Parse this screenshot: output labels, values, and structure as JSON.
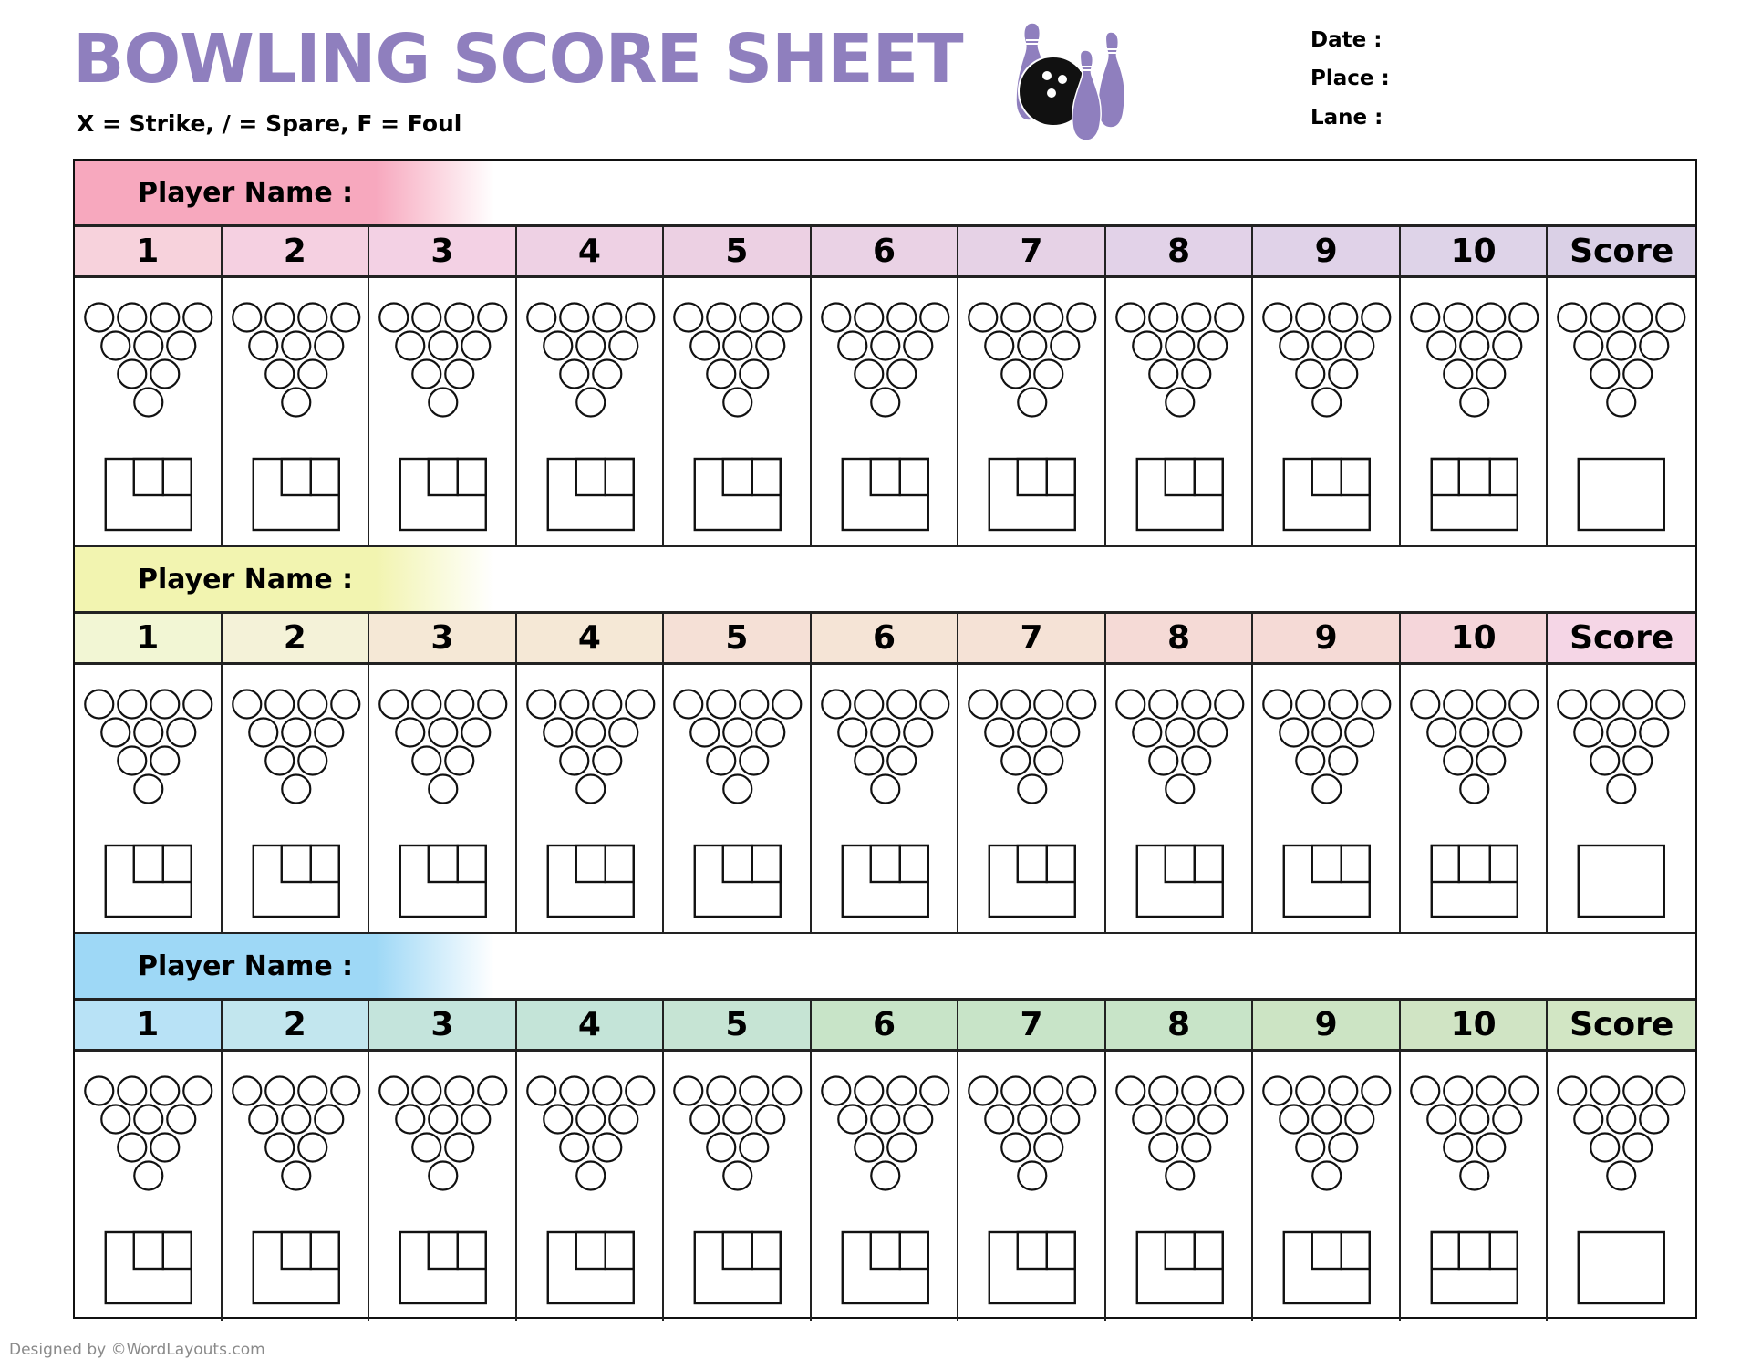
{
  "title": "BOWLING SCORE SHEET",
  "legend": "X = Strike, / = Spare, F = Foul",
  "meta": {
    "date_label": "Date :",
    "place_label": "Place :",
    "lane_label": "Lane :"
  },
  "icons": {
    "header_graphic": "bowling-ball-and-pins-icon"
  },
  "accent_color": "#8F7FBE",
  "columns": [
    "1",
    "2",
    "3",
    "4",
    "5",
    "6",
    "7",
    "8",
    "9",
    "10",
    "Score"
  ],
  "players": [
    {
      "name_label": "Player Name :",
      "name_color": "#F7A8BE",
      "header_colors": [
        "#F7D2DC",
        "#F5D0E1",
        "#F3D1E4",
        "#EED1E4",
        "#ECD0E3",
        "#EAD2E5",
        "#E6D2E6",
        "#E2D2E8",
        "#E0D2E8",
        "#DED3E8",
        "#DAD0E6"
      ]
    },
    {
      "name_label": "Player Name :",
      "name_color": "#F2F4B0",
      "header_colors": [
        "#F2F6D4",
        "#F4F2D8",
        "#F5E8D6",
        "#F5E8D6",
        "#F5E0D6",
        "#F5E4D6",
        "#F5E2D6",
        "#F5DAD6",
        "#F5DAD6",
        "#F5D6DA",
        "#F5D6E6"
      ]
    },
    {
      "name_label": "Player Name :",
      "name_color": "#9ED8F6",
      "header_colors": [
        "#B8E2F6",
        "#C2E6EE",
        "#C4E4DC",
        "#C4E4D8",
        "#C6E4D4",
        "#C8E4C8",
        "#C8E4C8",
        "#C8E4C8",
        "#CCE4C4",
        "#D0E4C4",
        "#D2E6C4"
      ]
    }
  ],
  "footer": "Designed by ©WordLayouts.com"
}
